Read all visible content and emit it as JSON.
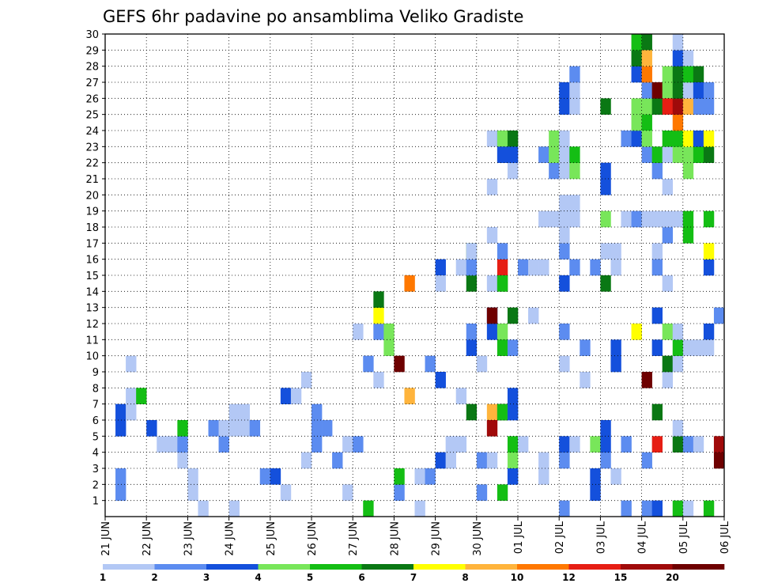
{
  "chart_data": {
    "type": "heatmap",
    "title": "GEFS 6hr padavine po ansamblima Veliko Gradiste",
    "x_tick_labels": [
      "21 JUN",
      "22 JUN",
      "23 JUN",
      "24 JUN",
      "25 JUN",
      "26 JUN",
      "27 JUN",
      "28 JUN",
      "29 JUN",
      "30 JUN",
      "01 JUL",
      "02 JUL",
      "03 JUL",
      "04 JUL",
      "05 JUL",
      "06 JUL"
    ],
    "y_tick_labels": [
      "1",
      "2",
      "3",
      "4",
      "5",
      "6",
      "7",
      "8",
      "9",
      "10",
      "11",
      "12",
      "13",
      "14",
      "15",
      "16",
      "17",
      "18",
      "19",
      "20",
      "21",
      "22",
      "23",
      "24",
      "25",
      "26",
      "27",
      "28",
      "29",
      "30"
    ],
    "xlim_steps": [
      0,
      60
    ],
    "ylim": [
      0,
      30
    ],
    "steps_per_day": 4,
    "grid": "dotted",
    "colorbar": {
      "labels": [
        "1",
        "2",
        "3",
        "4",
        "5",
        "6",
        "7",
        "8",
        "10",
        "12",
        "15",
        "20"
      ],
      "colors": [
        "#b3c8f5",
        "#5c8cf0",
        "#1450dc",
        "#78e65a",
        "#14be14",
        "#0a7814",
        "#ffff00",
        "#ffb43c",
        "#ff7800",
        "#e61e14",
        "#a00a0a",
        "#6e0000"
      ]
    },
    "cells": [
      [
        2,
        1,
        2
      ],
      [
        3,
        1,
        2
      ],
      [
        6,
        1,
        3
      ],
      [
        7,
        1,
        3
      ],
      [
        7,
        2,
        1
      ],
      [
        8,
        2,
        1
      ],
      [
        10,
        2,
        1
      ],
      [
        8,
        3,
        5
      ],
      [
        6,
        4,
        3
      ],
      [
        5,
        5,
        1
      ],
      [
        5,
        6,
        1
      ],
      [
        4,
        7,
        1
      ],
      [
        5,
        7,
        2
      ],
      [
        6,
        7,
        5
      ],
      [
        2,
        8,
        1
      ],
      [
        3,
        8,
        1
      ],
      [
        1,
        9,
        1
      ],
      [
        6,
        10,
        2
      ],
      [
        5,
        11,
        2
      ],
      [
        6,
        11,
        1
      ],
      [
        1,
        12,
        1
      ],
      [
        6,
        12,
        1
      ],
      [
        7,
        12,
        1
      ],
      [
        6,
        13,
        1
      ],
      [
        7,
        13,
        1
      ],
      [
        6,
        14,
        2
      ],
      [
        3,
        15,
        2
      ],
      [
        3,
        16,
        3
      ],
      [
        2,
        17,
        1
      ],
      [
        8,
        17,
        3
      ],
      [
        8,
        18,
        1
      ],
      [
        4,
        19,
        1
      ],
      [
        9,
        19,
        1
      ],
      [
        5,
        20,
        2
      ],
      [
        6,
        20,
        2
      ],
      [
        7,
        20,
        2
      ],
      [
        6,
        21,
        2
      ],
      [
        4,
        22,
        2
      ],
      [
        2,
        23,
        1
      ],
      [
        5,
        23,
        1
      ],
      [
        5,
        24,
        2
      ],
      [
        12,
        24,
        1
      ],
      [
        1,
        25,
        5
      ],
      [
        10,
        25,
        2
      ],
      [
        9,
        26,
        1
      ],
      [
        12,
        26,
        2
      ],
      [
        13,
        26,
        7
      ],
      [
        14,
        26,
        6
      ],
      [
        11,
        27,
        4
      ],
      [
        12,
        27,
        4
      ],
      [
        2,
        28,
        2
      ],
      [
        3,
        28,
        5
      ],
      [
        10,
        28,
        12
      ],
      [
        8,
        29,
        8
      ],
      [
        15,
        29,
        9
      ],
      [
        1,
        30,
        1
      ],
      [
        3,
        30,
        1
      ],
      [
        3,
        31,
        2
      ],
      [
        10,
        31,
        2
      ],
      [
        4,
        32,
        3
      ],
      [
        9,
        32,
        3
      ],
      [
        16,
        32,
        3
      ],
      [
        15,
        32,
        1
      ],
      [
        4,
        33,
        1
      ],
      [
        5,
        33,
        1
      ],
      [
        5,
        34,
        1
      ],
      [
        8,
        34,
        1
      ],
      [
        16,
        34,
        1
      ],
      [
        17,
        35,
        6
      ],
      [
        7,
        35,
        6
      ],
      [
        15,
        35,
        6
      ],
      [
        11,
        35,
        3
      ],
      [
        12,
        35,
        2
      ],
      [
        16,
        35,
        2
      ],
      [
        17,
        35,
        1
      ],
      [
        2,
        36,
        2
      ],
      [
        4,
        36,
        2
      ],
      [
        10,
        36,
        1
      ],
      [
        4,
        37,
        1
      ],
      [
        7,
        37,
        8
      ],
      [
        12,
        37,
        3
      ],
      [
        13,
        37,
        3
      ],
      [
        15,
        37,
        1
      ],
      [
        18,
        37,
        1
      ],
      [
        21,
        37,
        1
      ],
      [
        6,
        37,
        11
      ],
      [
        13,
        37,
        12
      ],
      [
        24,
        37,
        1
      ],
      [
        7,
        38,
        6
      ],
      [
        15,
        38,
        5
      ],
      [
        16,
        38,
        10
      ],
      [
        17,
        38,
        2
      ],
      [
        15,
        38,
        5
      ],
      [
        7,
        38,
        5
      ],
      [
        2,
        38,
        5
      ],
      [
        23,
        38,
        2
      ],
      [
        24,
        38,
        3
      ],
      [
        24,
        38,
        4
      ],
      [
        23,
        38,
        3
      ],
      [
        12,
        38,
        4
      ],
      [
        11,
        38,
        5
      ],
      [
        7,
        39,
        1
      ],
      [
        3,
        39,
        2
      ],
      [
        4,
        39,
        4
      ],
      [
        5,
        39,
        5
      ],
      [
        7,
        39,
        3
      ],
      [
        8,
        39,
        3
      ],
      [
        11,
        39,
        2
      ],
      [
        13,
        39,
        6
      ],
      [
        24,
        39,
        6
      ],
      [
        22,
        39,
        1
      ],
      [
        23,
        39,
        3
      ],
      [
        3,
        39,
        3
      ],
      [
        5,
        40,
        1
      ],
      [
        16,
        40,
        2
      ],
      [
        16,
        41,
        1
      ],
      [
        13,
        41,
        1
      ],
      [
        3,
        42,
        1
      ],
      [
        4,
        42,
        1
      ],
      [
        16,
        42,
        1
      ],
      [
        19,
        42,
        1
      ],
      [
        23,
        42,
        2
      ],
      [
        19,
        43,
        1
      ],
      [
        22,
        43,
        2
      ],
      [
        23,
        43,
        4
      ],
      [
        24,
        43,
        4
      ],
      [
        4,
        44,
        2
      ],
      [
        5,
        44,
        3
      ],
      [
        10,
        44,
        1
      ],
      [
        12,
        44,
        2
      ],
      [
        15,
        44,
        3
      ],
      [
        17,
        44,
        2
      ],
      [
        18,
        44,
        1
      ],
      [
        19,
        44,
        1
      ],
      [
        20,
        44,
        1
      ],
      [
        22,
        44,
        1
      ],
      [
        23,
        44,
        1
      ],
      [
        24,
        44,
        1
      ],
      [
        26,
        44,
        3
      ],
      [
        27,
        44,
        3
      ],
      [
        1,
        44,
        2
      ],
      [
        19,
        45,
        1
      ],
      [
        20,
        45,
        1
      ],
      [
        22,
        45,
        4
      ],
      [
        23,
        45,
        5
      ],
      [
        26,
        45,
        1
      ],
      [
        27,
        45,
        1
      ],
      [
        28,
        45,
        2
      ],
      [
        5,
        45,
        1
      ],
      [
        16,
        45,
        2
      ],
      [
        9,
        46,
        1
      ],
      [
        11,
        46,
        2
      ],
      [
        2,
        47,
        3
      ],
      [
        3,
        47,
        3
      ],
      [
        5,
        47,
        4
      ],
      [
        16,
        47,
        2
      ],
      [
        4,
        48,
        2
      ],
      [
        5,
        48,
        3
      ],
      [
        6,
        48,
        3
      ],
      [
        15,
        48,
        6
      ],
      [
        17,
        48,
        1
      ],
      [
        19,
        48,
        4
      ],
      [
        26,
        48,
        6
      ],
      [
        21,
        48,
        3
      ],
      [
        22,
        48,
        3
      ],
      [
        3,
        49,
        1
      ],
      [
        10,
        49,
        3
      ],
      [
        11,
        49,
        3
      ],
      [
        16,
        49,
        1
      ],
      [
        17,
        49,
        1
      ],
      [
        1,
        50,
        2
      ],
      [
        5,
        50,
        2
      ],
      [
        19,
        50,
        1
      ],
      [
        24,
        50,
        2
      ],
      [
        19,
        51,
        2
      ],
      [
        26,
        51,
        4
      ],
      [
        24,
        51,
        3
      ],
      [
        25,
        51,
        4
      ],
      [
        28,
        51,
        3
      ],
      [
        12,
        51,
        7
      ],
      [
        29,
        51,
        6
      ],
      [
        30,
        51,
        5
      ],
      [
        26,
        52,
        4
      ],
      [
        27,
        52,
        2
      ],
      [
        25,
        52,
        5
      ],
      [
        30,
        52,
        6
      ],
      [
        28,
        52,
        9
      ],
      [
        29,
        52,
        8
      ],
      [
        1,
        52,
        2
      ],
      [
        4,
        52,
        2
      ],
      [
        9,
        52,
        12
      ],
      [
        19,
        52,
        1
      ],
      [
        23,
        52,
        2
      ],
      [
        24,
        52,
        4
      ],
      [
        5,
        53,
        10
      ],
      [
        7,
        53,
        6
      ],
      [
        11,
        53,
        3
      ],
      [
        13,
        53,
        3
      ],
      [
        19,
        53,
        1
      ],
      [
        1,
        53,
        3
      ],
      [
        22,
        53,
        2
      ],
      [
        23,
        53,
        5
      ],
      [
        17,
        53,
        1
      ],
      [
        16,
        53,
        2
      ],
      [
        26,
        53,
        6
      ],
      [
        27,
        53,
        12
      ],
      [
        9,
        54,
        1
      ],
      [
        12,
        54,
        4
      ],
      [
        15,
        54,
        1
      ],
      [
        18,
        54,
        2
      ],
      [
        19,
        54,
        1
      ],
      [
        21,
        54,
        1
      ],
      [
        23,
        54,
        1
      ],
      [
        24,
        54,
        5
      ],
      [
        27,
        54,
        4
      ],
      [
        26,
        54,
        10
      ],
      [
        28,
        54,
        4
      ],
      [
        10,
        54,
        6
      ],
      [
        5,
        55,
        6
      ],
      [
        6,
        55,
        1
      ],
      [
        19,
        55,
        1
      ],
      [
        23,
        55,
        4
      ],
      [
        24,
        55,
        5
      ],
      [
        25,
        55,
        9
      ],
      [
        26,
        55,
        11
      ],
      [
        27,
        55,
        6
      ],
      [
        28,
        55,
        6
      ],
      [
        29,
        55,
        3
      ],
      [
        30,
        55,
        1
      ],
      [
        10,
        55,
        1
      ],
      [
        11,
        55,
        5
      ],
      [
        12,
        55,
        1
      ],
      [
        1,
        55,
        5
      ],
      [
        5,
        56,
        2
      ],
      [
        11,
        56,
        1
      ],
      [
        18,
        56,
        5
      ],
      [
        19,
        56,
        5
      ],
      [
        23,
        56,
        4
      ],
      [
        24,
        56,
        7
      ],
      [
        26,
        56,
        8
      ],
      [
        27,
        56,
        1
      ],
      [
        29,
        56,
        1
      ],
      [
        28,
        56,
        5
      ],
      [
        1,
        56,
        1
      ],
      [
        22,
        56,
        4
      ],
      [
        24,
        57,
        2
      ],
      [
        26,
        57,
        2
      ],
      [
        28,
        57,
        6
      ],
      [
        5,
        57,
        1
      ],
      [
        11,
        57,
        1
      ],
      [
        23,
        57,
        5
      ],
      [
        24,
        57,
        3
      ],
      [
        27,
        57,
        3
      ],
      [
        26,
        58,
        2
      ],
      [
        12,
        58,
        3
      ],
      [
        16,
        58,
        3
      ],
      [
        17,
        58,
        7
      ],
      [
        19,
        58,
        5
      ],
      [
        23,
        58,
        6
      ],
      [
        24,
        58,
        7
      ],
      [
        27,
        58,
        2
      ],
      [
        1,
        58,
        5
      ],
      [
        11,
        58,
        1
      ],
      [
        13,
        59,
        2
      ],
      [
        4,
        59,
        12
      ],
      [
        5,
        59,
        11
      ]
    ]
  }
}
